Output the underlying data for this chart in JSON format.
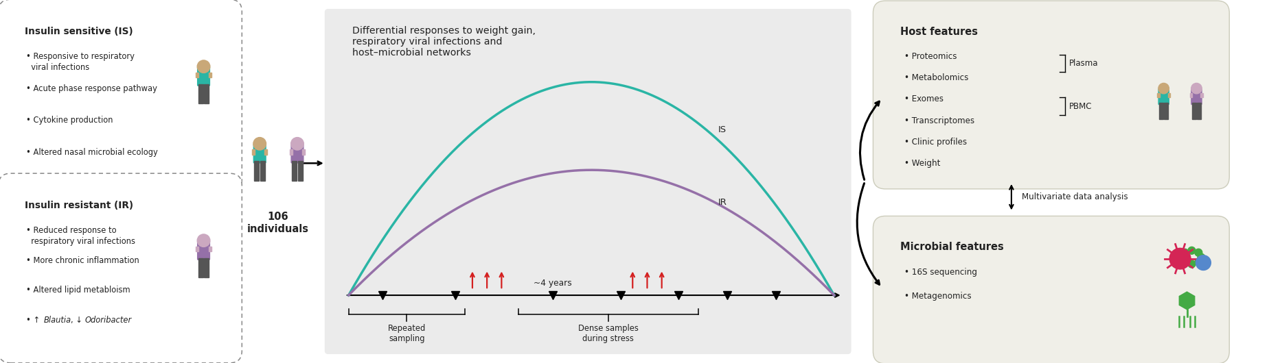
{
  "bg_color": "#ffffff",
  "panel_bg": "#ebebeb",
  "teal_color": "#2ab5a5",
  "purple_color": "#9570a8",
  "dark_color": "#222222",
  "red_color": "#d42020",
  "box_bg": "#f0efe8",
  "is_box": {
    "title": "Insulin sensitive (IS)",
    "bullets": [
      "Responsive to respiratory\n  viral infections",
      "Acute phase response pathway",
      "Cytokine production",
      "Altered nasal microbial ecology"
    ]
  },
  "ir_box": {
    "title": "Insulin resistant (IR)",
    "bullets": [
      "Reduced response to\n  respiratory viral infections",
      "More chronic inflammation",
      "Altered lipid metabloism",
      "↑ Blautia, ↓ Odoribacter"
    ]
  },
  "center_title": "Differential responses to weight gain,\nrespiratory viral infections and\nhost–microbial networks",
  "individuals_label": "106\nindividuals",
  "repeated_sampling": "Repeated\nsampling",
  "dense_samples": "Dense samples\nduring stress",
  "four_years": "~4 years",
  "IS_label": "IS",
  "IR_label": "IR",
  "host_box": {
    "title": "Host features",
    "bullets": [
      "Proteomics",
      "Metabolomics",
      "Exomes",
      "Transcriptomes",
      "Clinic profiles",
      "Weight"
    ],
    "plasma_label": "Plasma",
    "pbmc_label": "PBMC"
  },
  "microbial_box": {
    "title": "Microbial features",
    "bullets": [
      "16S sequencing",
      "Metagenomics"
    ]
  },
  "multivariate_label": "Multivariate data analysis"
}
